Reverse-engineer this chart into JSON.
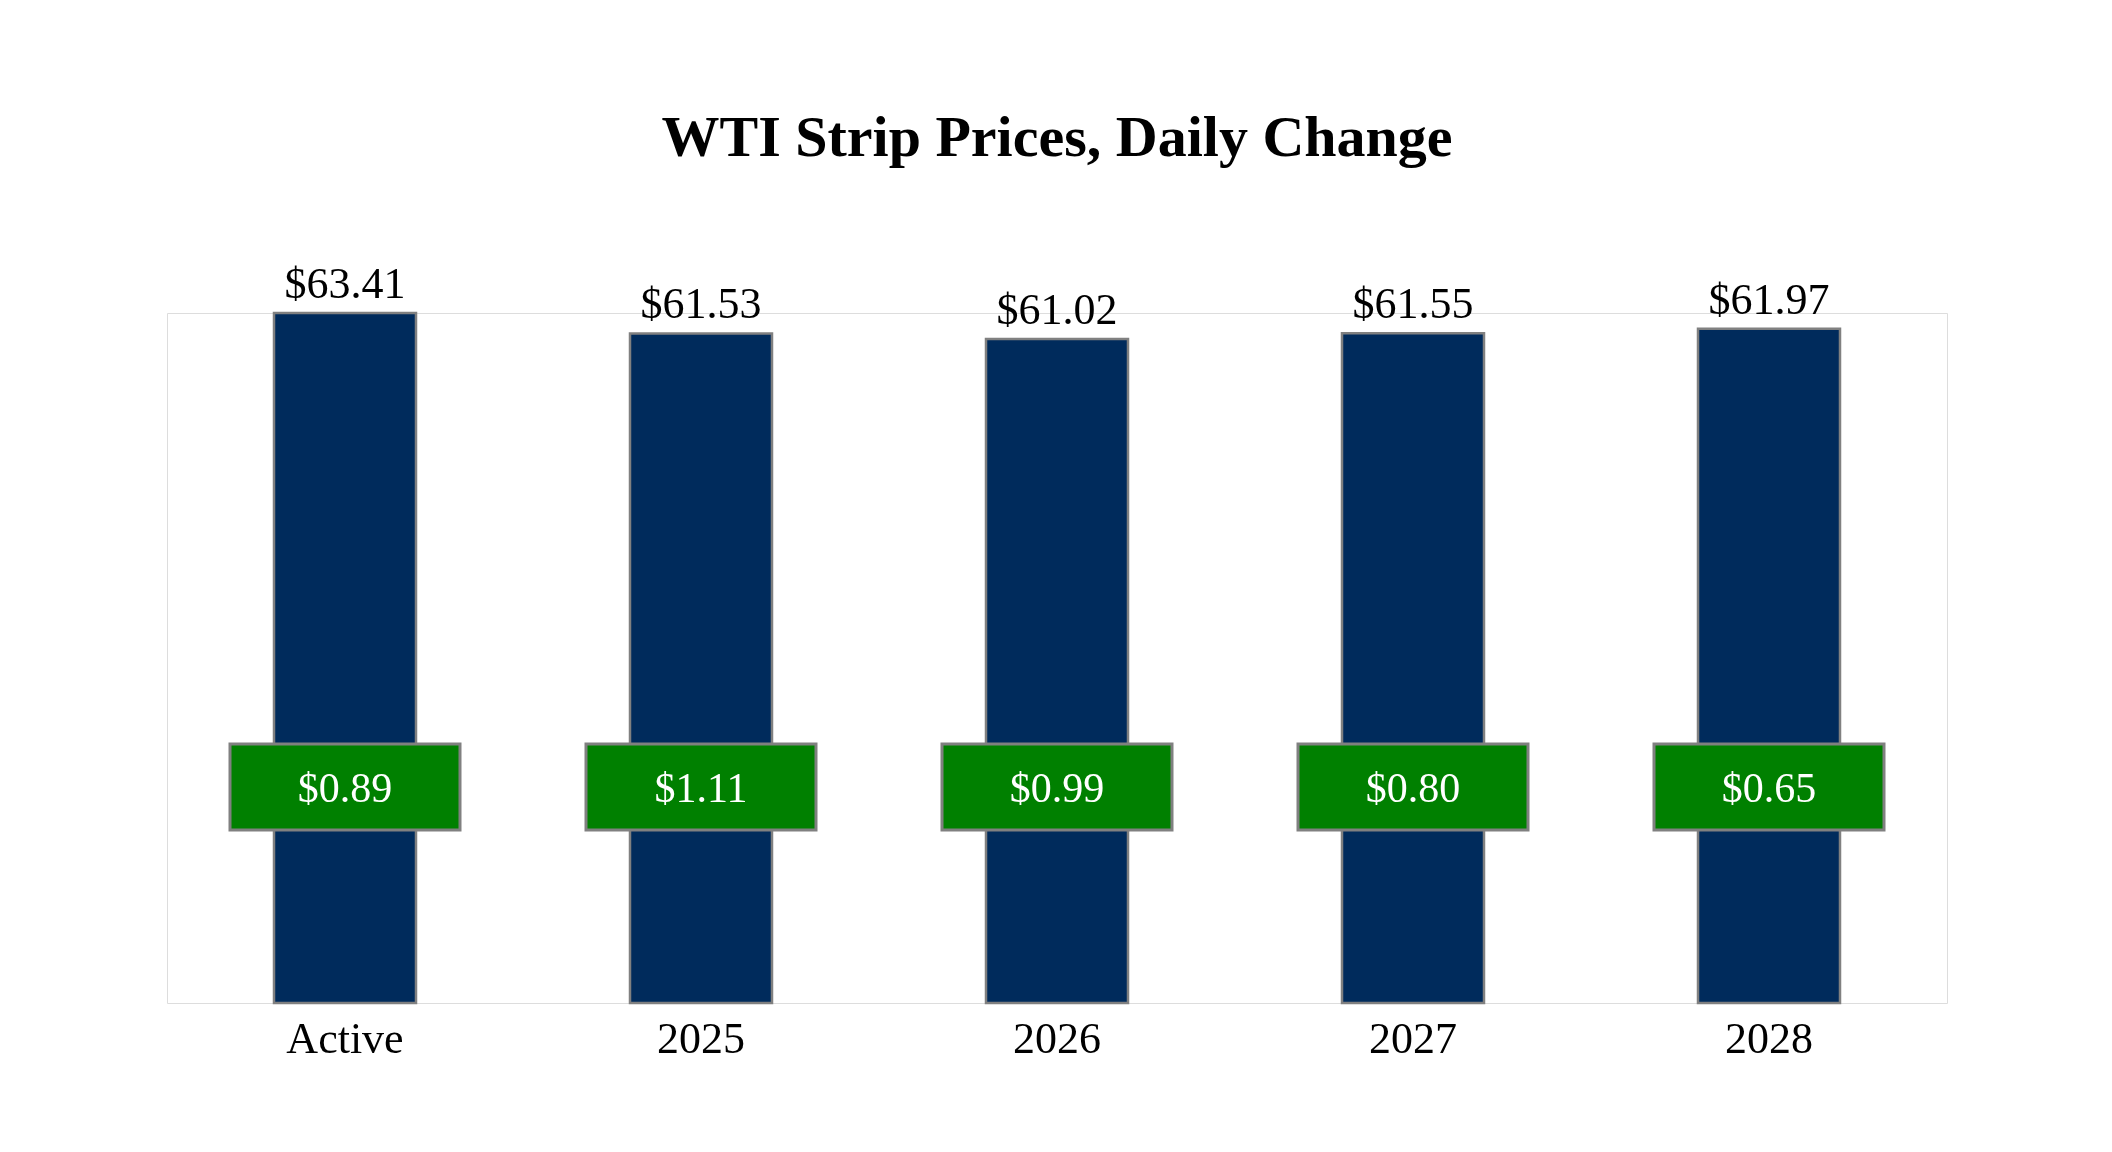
{
  "chart_data": {
    "type": "bar",
    "title": "WTI Strip Prices, Daily Change",
    "categories": [
      "Active",
      "2025",
      "2026",
      "2027",
      "2028"
    ],
    "values": [
      63.41,
      61.53,
      61.02,
      61.55,
      61.97
    ],
    "value_labels": [
      "$63.41",
      "$61.53",
      "$61.02",
      "$61.55",
      "$61.97"
    ],
    "color": "#002b5c",
    "annotations": [
      "$0.89",
      "$1.11",
      "$0.99",
      "$0.80",
      "$0.65"
    ],
    "grid": false
  }
}
